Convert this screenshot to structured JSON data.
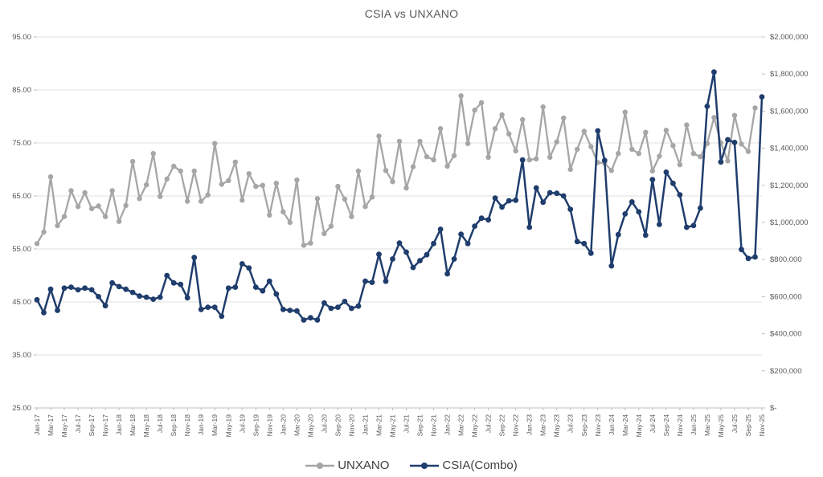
{
  "chart_data": {
    "type": "line",
    "title": "CSIA vs UNXANO",
    "grid": true,
    "legend_position": "bottom",
    "x_label_every": 2,
    "categories": [
      "Jan-17",
      "Feb-17",
      "Mar-17",
      "Apr-17",
      "May-17",
      "Jun-17",
      "Jul-17",
      "Aug-17",
      "Sep-17",
      "Oct-17",
      "Nov-17",
      "Dec-17",
      "Jan-18",
      "Feb-18",
      "Mar-18",
      "Apr-18",
      "May-18",
      "Jun-18",
      "Jul-18",
      "Aug-18",
      "Sep-18",
      "Oct-18",
      "Nov-18",
      "Dec-18",
      "Jan-19",
      "Feb-19",
      "Mar-19",
      "Apr-19",
      "May-19",
      "Jun-19",
      "Jul-19",
      "Aug-19",
      "Sep-19",
      "Oct-19",
      "Nov-19",
      "Dec-19",
      "Jan-20",
      "Feb-20",
      "Mar-20",
      "Apr-20",
      "May-20",
      "Jun-20",
      "Jul-20",
      "Aug-20",
      "Sep-20",
      "Oct-20",
      "Nov-20",
      "Dec-20",
      "Jan-21",
      "Feb-21",
      "Mar-21",
      "Apr-21",
      "May-21",
      "Jun-21",
      "Jul-21",
      "Aug-21",
      "Sep-21",
      "Oct-21",
      "Nov-21",
      "Dec-21",
      "Jan-22",
      "Feb-22",
      "Mar-22",
      "Apr-22",
      "May-22",
      "Jun-22",
      "Jul-22",
      "Aug-22",
      "Sep-22",
      "Oct-22",
      "Nov-22",
      "Dec-22",
      "Jan-23",
      "Feb-23",
      "Mar-23",
      "Apr-23",
      "May-23",
      "Jun-23",
      "Jul-23",
      "Aug-23",
      "Sep-23",
      "Oct-23",
      "Nov-23",
      "Dec-23",
      "Jan-24",
      "Feb-24",
      "Mar-24",
      "Apr-24",
      "May-24",
      "Jun-24",
      "Jul-24",
      "Aug-24",
      "Sep-24",
      "Oct-24",
      "Nov-24",
      "Dec-24",
      "Jan-25",
      "Feb-25",
      "Mar-25",
      "Apr-25",
      "May-25",
      "Jun-25",
      "Jul-25",
      "Aug-25",
      "Sep-25",
      "Oct-25",
      "Nov-25"
    ],
    "left_axis": {
      "min": 25,
      "max": 95,
      "step": 10,
      "tick_labels": [
        "95.00",
        "85.00",
        "75.00",
        "65.00",
        "55.00",
        "45.00",
        "35.00",
        "25.00"
      ]
    },
    "right_axis": {
      "min": 0,
      "max": 2000000,
      "step": 200000,
      "tick_labels": [
        "$2,000,000",
        "$1,800,000",
        "$1,600,000",
        "$1,400,000",
        "$1,200,000",
        "$1,000,000",
        "$800,000",
        "$600,000",
        "$400,000",
        "$200,000",
        "$-"
      ]
    },
    "series": [
      {
        "name": "UNXANO",
        "axis": "left",
        "color": "#a6a6a6",
        "values": [
          56.0,
          58.2,
          68.6,
          59.4,
          61.1,
          66.0,
          63.0,
          65.6,
          62.6,
          63.1,
          61.1,
          66.0,
          60.2,
          63.2,
          71.5,
          64.5,
          67.1,
          73.0,
          64.9,
          68.2,
          70.6,
          69.7,
          64.0,
          69.7,
          64.0,
          65.2,
          74.9,
          67.2,
          67.9,
          71.4,
          64.2,
          69.2,
          66.8,
          67.0,
          61.4,
          67.4,
          62.0,
          60.0,
          68.0,
          55.7,
          56.1,
          64.5,
          57.9,
          59.3,
          66.8,
          64.4,
          61.1,
          69.7,
          63.0,
          64.8,
          76.3,
          69.8,
          67.7,
          75.3,
          66.5,
          70.5,
          75.3,
          72.4,
          71.8,
          77.7,
          70.6,
          72.6,
          83.9,
          74.9,
          81.2,
          82.6,
          72.3,
          77.7,
          80.3,
          76.7,
          73.5,
          79.4,
          71.8,
          72.0,
          81.8,
          72.3,
          75.2,
          79.7,
          70.0,
          73.8,
          77.2,
          74.3,
          71.3,
          71.2,
          69.8,
          73.0,
          80.8,
          73.8,
          73.0,
          77.0,
          69.7,
          72.5,
          77.4,
          74.5,
          70.9,
          78.4,
          73.0,
          72.4,
          74.9,
          79.8,
          75.0,
          71.6,
          80.2,
          74.8,
          73.4,
          81.6,
          null
        ]
      },
      {
        "name": "CSIA(Combo)",
        "axis": "right",
        "color": "#1f3d6d",
        "values": [
          583000,
          514000,
          640000,
          526000,
          646000,
          651000,
          637000,
          646000,
          637000,
          600000,
          551000,
          674000,
          654000,
          640000,
          623000,
          603000,
          597000,
          586000,
          597000,
          714000,
          674000,
          666000,
          594000,
          811000,
          531000,
          543000,
          543000,
          494000,
          646000,
          651000,
          777000,
          754000,
          651000,
          631000,
          683000,
          614000,
          531000,
          526000,
          523000,
          474000,
          486000,
          474000,
          566000,
          537000,
          543000,
          574000,
          537000,
          549000,
          683000,
          677000,
          828000,
          683000,
          803000,
          889000,
          840000,
          757000,
          794000,
          826000,
          886000,
          963000,
          723000,
          803000,
          937000,
          886000,
          980000,
          1023000,
          1014000,
          1131000,
          1083000,
          1117000,
          1120000,
          1337000,
          974000,
          1186000,
          1109000,
          1160000,
          1157000,
          1143000,
          1071000,
          897000,
          886000,
          834000,
          1494000,
          1334000,
          766000,
          934000,
          1046000,
          1111000,
          1057000,
          931000,
          1231000,
          989000,
          1271000,
          1211000,
          1149000,
          974000,
          983000,
          1077000,
          1626000,
          1811000,
          1326000,
          1446000,
          1431000,
          854000,
          806000,
          814000,
          1677000
        ]
      }
    ],
    "styles": {
      "grid_color": "#e2e2e2",
      "axis_color": "#bfbfbf",
      "tick_text_color": "#595959",
      "title_color": "#595959",
      "legend_text_color": "#404040"
    }
  }
}
